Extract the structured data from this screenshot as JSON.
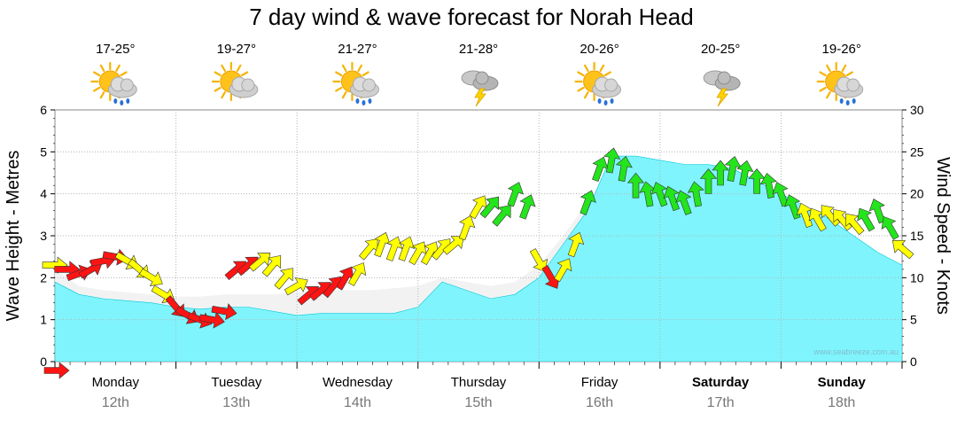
{
  "chart_data": {
    "type": "area",
    "title": "7 day wind & wave forecast for Norah Head",
    "ylabel": "Wave Height - Metres",
    "y2label": "Wind Speed - Knots",
    "ylim": [
      0,
      6
    ],
    "y2lim": [
      0,
      30
    ],
    "y_ticks": [
      "0",
      "1",
      "2",
      "3",
      "4",
      "5",
      "6"
    ],
    "y2_ticks": [
      "0",
      "5",
      "10",
      "15",
      "20",
      "25",
      "30"
    ],
    "credit": "www.seabreeze.com.au",
    "days": [
      {
        "day": "Monday",
        "date": "12th",
        "temp": "17-25°",
        "icon": "sun-cloud-rain-icon",
        "weekend": false
      },
      {
        "day": "Tuesday",
        "date": "13th",
        "temp": "19-27°",
        "icon": "sun-cloud-icon",
        "weekend": false
      },
      {
        "day": "Wednesday",
        "date": "14th",
        "temp": "21-27°",
        "icon": "sun-cloud-rain-icon",
        "weekend": false
      },
      {
        "day": "Thursday",
        "date": "15th",
        "temp": "21-28°",
        "icon": "storm-cloud-icon",
        "weekend": false
      },
      {
        "day": "Friday",
        "date": "16th",
        "temp": "20-26°",
        "icon": "sun-cloud-rain-icon",
        "weekend": false
      },
      {
        "day": "Saturday",
        "date": "17th",
        "temp": "20-25°",
        "icon": "storm-cloud-icon",
        "weekend": true
      },
      {
        "day": "Sunday",
        "date": "18th",
        "temp": "19-26°",
        "icon": "sun-cloud-rain-icon",
        "weekend": true
      }
    ],
    "wave_height_m": {
      "x_day": [
        0,
        0.2,
        0.4,
        0.6,
        0.8,
        1.0,
        1.2,
        1.4,
        1.6,
        1.8,
        2.0,
        2.2,
        2.4,
        2.6,
        2.8,
        3.0,
        3.2,
        3.4,
        3.6,
        3.8,
        4.0,
        4.2,
        4.4,
        4.6,
        4.8,
        5.0,
        5.2,
        5.4,
        5.6,
        5.8,
        6.0,
        6.2,
        6.4,
        6.6,
        6.8,
        7.0
      ],
      "values": [
        1.9,
        1.6,
        1.5,
        1.45,
        1.4,
        1.3,
        1.25,
        1.3,
        1.3,
        1.2,
        1.1,
        1.15,
        1.15,
        1.15,
        1.15,
        1.3,
        1.9,
        1.7,
        1.5,
        1.6,
        2.0,
        2.8,
        3.6,
        4.9,
        4.9,
        4.8,
        4.7,
        4.7,
        4.6,
        4.3,
        4.0,
        3.7,
        3.4,
        3.0,
        2.6,
        2.3
      ]
    },
    "wave_secondary_m": {
      "x_day": [
        0,
        0.2,
        0.4,
        0.6,
        0.8,
        1.0,
        1.2,
        1.4,
        1.6,
        1.8,
        2.0,
        2.2,
        2.4,
        2.6,
        2.8,
        3.0,
        3.2,
        3.4,
        3.6,
        3.8,
        4.0,
        4.2,
        4.4,
        4.6,
        4.8,
        5.0,
        5.2,
        5.4,
        5.6,
        5.8,
        6.0,
        6.2,
        6.4,
        6.6,
        6.8,
        7.0
      ],
      "values": [
        2.2,
        1.8,
        1.7,
        1.65,
        1.6,
        1.55,
        1.55,
        1.6,
        1.6,
        1.6,
        1.65,
        1.7,
        1.7,
        1.7,
        1.75,
        1.8,
        2.0,
        1.9,
        1.8,
        1.9,
        2.3,
        3.0,
        3.8,
        4.7,
        4.6,
        4.5,
        4.5,
        4.4,
        4.4,
        4.2,
        3.9,
        3.6,
        3.3,
        2.9,
        2.5,
        2.2
      ]
    },
    "wind": {
      "x_day": [
        0,
        0.1,
        0.2,
        0.3,
        0.4,
        0.5,
        0.6,
        0.7,
        0.8,
        0.9,
        1.0,
        1.1,
        1.2,
        1.3,
        1.4,
        1.5,
        1.6,
        1.7,
        1.8,
        1.9,
        2.0,
        2.1,
        2.2,
        2.3,
        2.4,
        2.5,
        2.6,
        2.7,
        2.8,
        2.9,
        3.0,
        3.1,
        3.2,
        3.3,
        3.4,
        3.5,
        3.6,
        3.7,
        3.8,
        3.9,
        4.0,
        4.1,
        4.2,
        4.3,
        4.4,
        4.5,
        4.6,
        4.7,
        4.8,
        4.9,
        5.0,
        5.1,
        5.2,
        5.3,
        5.4,
        5.5,
        5.6,
        5.7,
        5.8,
        5.9,
        6.0,
        6.1,
        6.2,
        6.3,
        6.4,
        6.5,
        6.6,
        6.7,
        6.8,
        6.9,
        7.0
      ],
      "knots": [
        11.5,
        11,
        10.5,
        11,
        12,
        12.5,
        12,
        11,
        10,
        8,
        6.5,
        5.5,
        5,
        5,
        6,
        11,
        11.5,
        12,
        11.5,
        10,
        9,
        8,
        8.5,
        9,
        10,
        10.5,
        13.5,
        14,
        13.5,
        13.5,
        13,
        13,
        13.5,
        14,
        16,
        18.5,
        18.5,
        17.5,
        20,
        18.5,
        12,
        10,
        11,
        14,
        19,
        23,
        24,
        23,
        21,
        20,
        20,
        19.5,
        19,
        20,
        21.5,
        22.5,
        23,
        22.5,
        21.5,
        21,
        20,
        18.5,
        17.5,
        17,
        17.5,
        17,
        16.5,
        17,
        18,
        16,
        13.5
      ],
      "direction_deg": [
        270,
        270,
        250,
        240,
        260,
        280,
        300,
        310,
        300,
        300,
        320,
        300,
        290,
        280,
        280,
        230,
        230,
        230,
        220,
        220,
        240,
        230,
        230,
        220,
        210,
        210,
        220,
        200,
        200,
        200,
        210,
        210,
        220,
        230,
        200,
        210,
        220,
        220,
        200,
        200,
        330,
        330,
        210,
        200,
        200,
        200,
        190,
        190,
        180,
        170,
        160,
        160,
        160,
        170,
        180,
        180,
        190,
        190,
        180,
        170,
        160,
        160,
        160,
        150,
        140,
        140,
        140,
        150,
        160,
        150,
        130
      ],
      "grade": [
        "y",
        "r",
        "r",
        "r",
        "r",
        "r",
        "y",
        "y",
        "y",
        "y",
        "r",
        "r",
        "r",
        "r",
        "r",
        "r",
        "r",
        "y",
        "y",
        "y",
        "y",
        "r",
        "r",
        "r",
        "r",
        "y",
        "y",
        "y",
        "y",
        "y",
        "y",
        "y",
        "y",
        "y",
        "y",
        "y",
        "g",
        "g",
        "g",
        "g",
        "y",
        "r",
        "y",
        "y",
        "g",
        "g",
        "g",
        "g",
        "g",
        "g",
        "g",
        "g",
        "g",
        "g",
        "g",
        "g",
        "g",
        "g",
        "g",
        "g",
        "g",
        "g",
        "y",
        "y",
        "y",
        "y",
        "y",
        "g",
        "g",
        "g",
        "y"
      ]
    }
  },
  "colors": {
    "wave": "#80f4fc",
    "wave_line": "#00c8d8",
    "light": "#ffff00",
    "moderate": "#24e41c",
    "strong": "#ff1414",
    "grid": "#b4b4b4"
  }
}
